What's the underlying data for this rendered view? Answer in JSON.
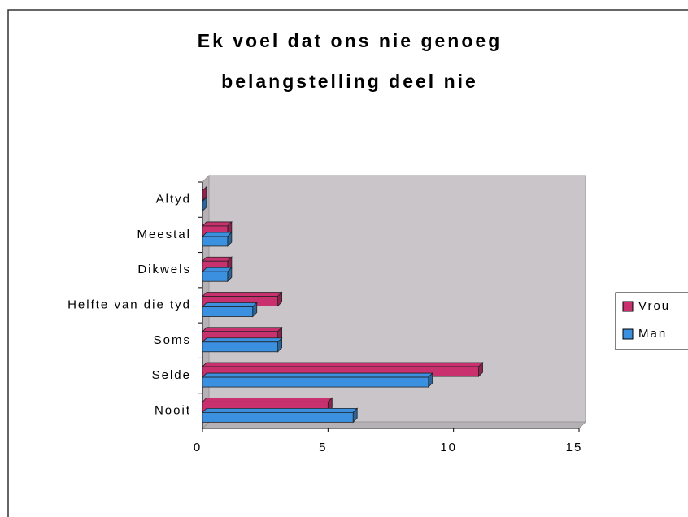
{
  "chart_data": {
    "type": "bar3d_horizontal",
    "title_lines": [
      "Ek voel dat ons nie genoeg",
      "belangstelling deel nie"
    ],
    "categories": [
      "Altyd",
      "Meestal",
      "Dikwels",
      "Helfte van die tyd",
      "Soms",
      "Selde",
      "Nooit"
    ],
    "series": [
      {
        "name": "Vrou",
        "color": "#c8306e",
        "values": [
          0,
          1,
          1,
          3,
          3,
          11,
          5
        ]
      },
      {
        "name": "Man",
        "color": "#3c90e0",
        "values": [
          0,
          1,
          1,
          2,
          3,
          9,
          6
        ]
      }
    ],
    "xlim": [
      0,
      15
    ],
    "xticks": [
      0,
      5,
      10,
      15
    ],
    "wall_color": "#c9c5c9"
  }
}
